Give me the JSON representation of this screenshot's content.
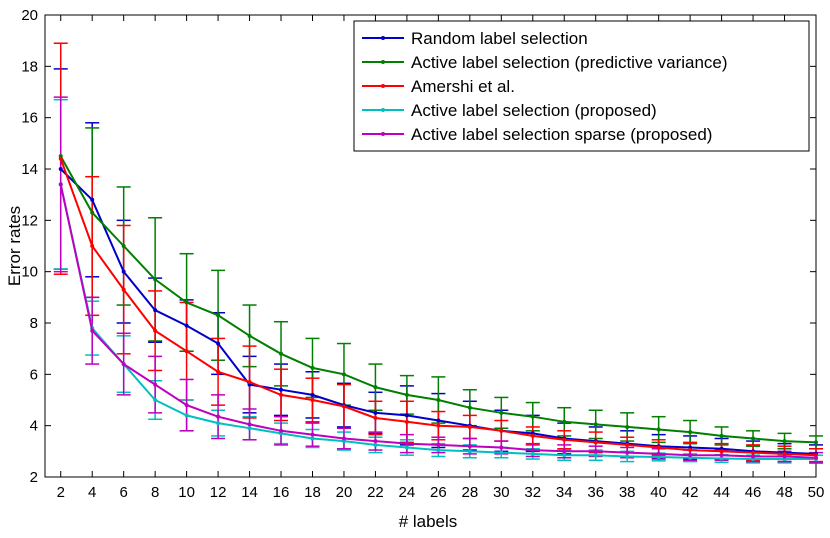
{
  "chart_data": {
    "type": "line",
    "xlabel": "# labels",
    "ylabel": "Error rates",
    "xlim": [
      1,
      50
    ],
    "ylim": [
      2,
      20
    ],
    "xticks": [
      2,
      4,
      6,
      8,
      10,
      12,
      14,
      16,
      18,
      20,
      22,
      24,
      26,
      28,
      30,
      32,
      34,
      36,
      38,
      40,
      42,
      44,
      46,
      48,
      50
    ],
    "yticks": [
      2,
      4,
      6,
      8,
      10,
      12,
      14,
      16,
      18,
      20
    ],
    "legend_position": "top-right",
    "grid": false,
    "x": [
      2,
      4,
      6,
      8,
      10,
      12,
      14,
      16,
      18,
      20,
      22,
      24,
      26,
      28,
      30,
      32,
      34,
      36,
      38,
      40,
      42,
      44,
      46,
      48,
      50
    ],
    "series": [
      {
        "name": "Random label selection",
        "color": "#0000cc",
        "values": [
          14.0,
          12.8,
          10.0,
          8.5,
          7.9,
          7.2,
          5.6,
          5.4,
          5.2,
          4.8,
          4.5,
          4.4,
          4.2,
          4.0,
          3.8,
          3.7,
          3.5,
          3.4,
          3.3,
          3.2,
          3.15,
          3.1,
          3.0,
          2.95,
          2.9
        ],
        "err": [
          3.9,
          3.0,
          2.0,
          1.25,
          1.0,
          1.2,
          1.1,
          1.0,
          0.9,
          0.85,
          0.8,
          1.15,
          1.05,
          0.95,
          0.8,
          0.7,
          0.6,
          0.55,
          0.5,
          0.45,
          0.45,
          0.4,
          0.4,
          0.35,
          0.35
        ]
      },
      {
        "name": "Active label selection (predictive variance)",
        "color": "#007f00",
        "values": [
          14.5,
          12.3,
          11.0,
          9.7,
          8.8,
          8.3,
          7.5,
          6.8,
          6.25,
          6.0,
          5.5,
          5.2,
          5.0,
          4.7,
          4.5,
          4.35,
          4.15,
          4.05,
          3.95,
          3.85,
          3.75,
          3.6,
          3.5,
          3.4,
          3.35
        ],
        "err": [
          0,
          3.3,
          2.3,
          2.4,
          1.9,
          1.75,
          1.2,
          1.25,
          1.15,
          1.2,
          0.9,
          0.75,
          0.9,
          0.7,
          0.6,
          0.55,
          0.55,
          0.55,
          0.55,
          0.5,
          0.45,
          0.35,
          0.3,
          0.3,
          0.25
        ]
      },
      {
        "name": "Amershi et al.",
        "color": "#ff0000",
        "values": [
          14.4,
          11.0,
          9.3,
          7.7,
          6.9,
          6.1,
          5.7,
          5.2,
          5.0,
          4.75,
          4.3,
          4.15,
          4.0,
          3.95,
          3.8,
          3.6,
          3.45,
          3.35,
          3.25,
          3.15,
          3.05,
          3.0,
          2.95,
          2.9,
          2.85
        ],
        "err": [
          4.5,
          2.7,
          2.5,
          1.55,
          1.9,
          1.3,
          1.4,
          1.0,
          0.85,
          0.85,
          0.65,
          0.8,
          0.55,
          0.45,
          0.4,
          0.35,
          0.35,
          0.4,
          0.3,
          0.3,
          0.3,
          0.3,
          0.3,
          0.3,
          0.25
        ]
      },
      {
        "name": "Active label selection (proposed)",
        "color": "#00bfbf",
        "values": [
          13.4,
          7.8,
          6.4,
          5.0,
          4.4,
          4.1,
          3.9,
          3.7,
          3.5,
          3.4,
          3.25,
          3.15,
          3.05,
          3.0,
          2.95,
          2.9,
          2.85,
          2.85,
          2.8,
          2.78,
          2.75,
          2.72,
          2.7,
          2.7,
          2.7
        ],
        "err": [
          3.3,
          1.05,
          1.1,
          0.75,
          0.6,
          0.5,
          0.45,
          0.4,
          0.35,
          0.35,
          0.3,
          0.3,
          0.25,
          0.25,
          0.2,
          0.2,
          0.2,
          0.2,
          0.2,
          0.15,
          0.15,
          0.15,
          0.15,
          0.15,
          0.15
        ]
      },
      {
        "name": "Active label selection sparse (proposed)",
        "color": "#bf00bf",
        "values": [
          13.4,
          7.7,
          6.4,
          5.6,
          4.8,
          4.35,
          4.05,
          3.8,
          3.65,
          3.5,
          3.4,
          3.3,
          3.25,
          3.2,
          3.15,
          3.05,
          3.0,
          3.0,
          2.95,
          2.9,
          2.85,
          2.85,
          2.8,
          2.8,
          2.75
        ],
        "err": [
          3.4,
          1.3,
          1.2,
          1.1,
          1.0,
          0.85,
          0.6,
          0.55,
          0.45,
          0.4,
          0.35,
          0.35,
          0.3,
          0.3,
          0.25,
          0.25,
          0.25,
          0.2,
          0.2,
          0.2,
          0.2,
          0.2,
          0.2,
          0.2,
          0.2
        ]
      }
    ]
  }
}
